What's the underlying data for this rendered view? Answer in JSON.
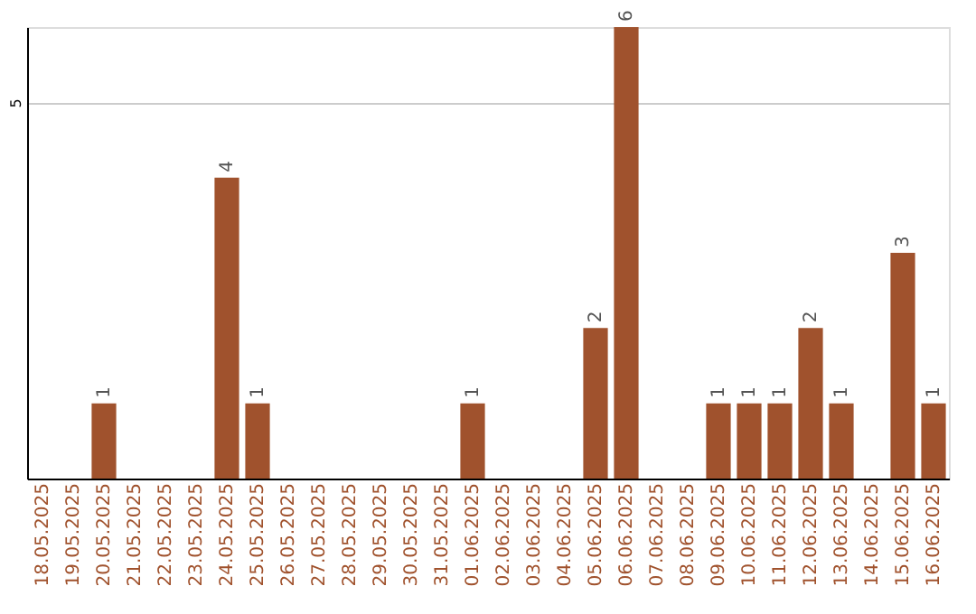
{
  "chart_data": {
    "type": "bar",
    "categories": [
      "18.05.2025",
      "19.05.2025",
      "20.05.2025",
      "21.05.2025",
      "22.05.2025",
      "23.05.2025",
      "24.05.2025",
      "25.05.2025",
      "26.05.2025",
      "27.05.2025",
      "28.05.2025",
      "29.05.2025",
      "30.05.2025",
      "31.05.2025",
      "01.06.2025",
      "02.06.2025",
      "03.06.2025",
      "04.06.2025",
      "05.06.2025",
      "06.06.2025",
      "07.06.2025",
      "08.06.2025",
      "09.06.2025",
      "10.06.2025",
      "11.06.2025",
      "12.06.2025",
      "13.06.2025",
      "14.06.2025",
      "15.06.2025",
      "16.06.2025"
    ],
    "values": [
      null,
      null,
      1,
      null,
      null,
      null,
      4,
      1,
      null,
      null,
      null,
      null,
      null,
      null,
      1,
      null,
      null,
      null,
      2,
      6,
      null,
      null,
      1,
      1,
      1,
      2,
      1,
      null,
      3,
      1
    ],
    "color": "#a0522d",
    "ylim": [
      0,
      6
    ],
    "yticks": [
      5
    ],
    "grid": "y",
    "data_labels": true
  }
}
